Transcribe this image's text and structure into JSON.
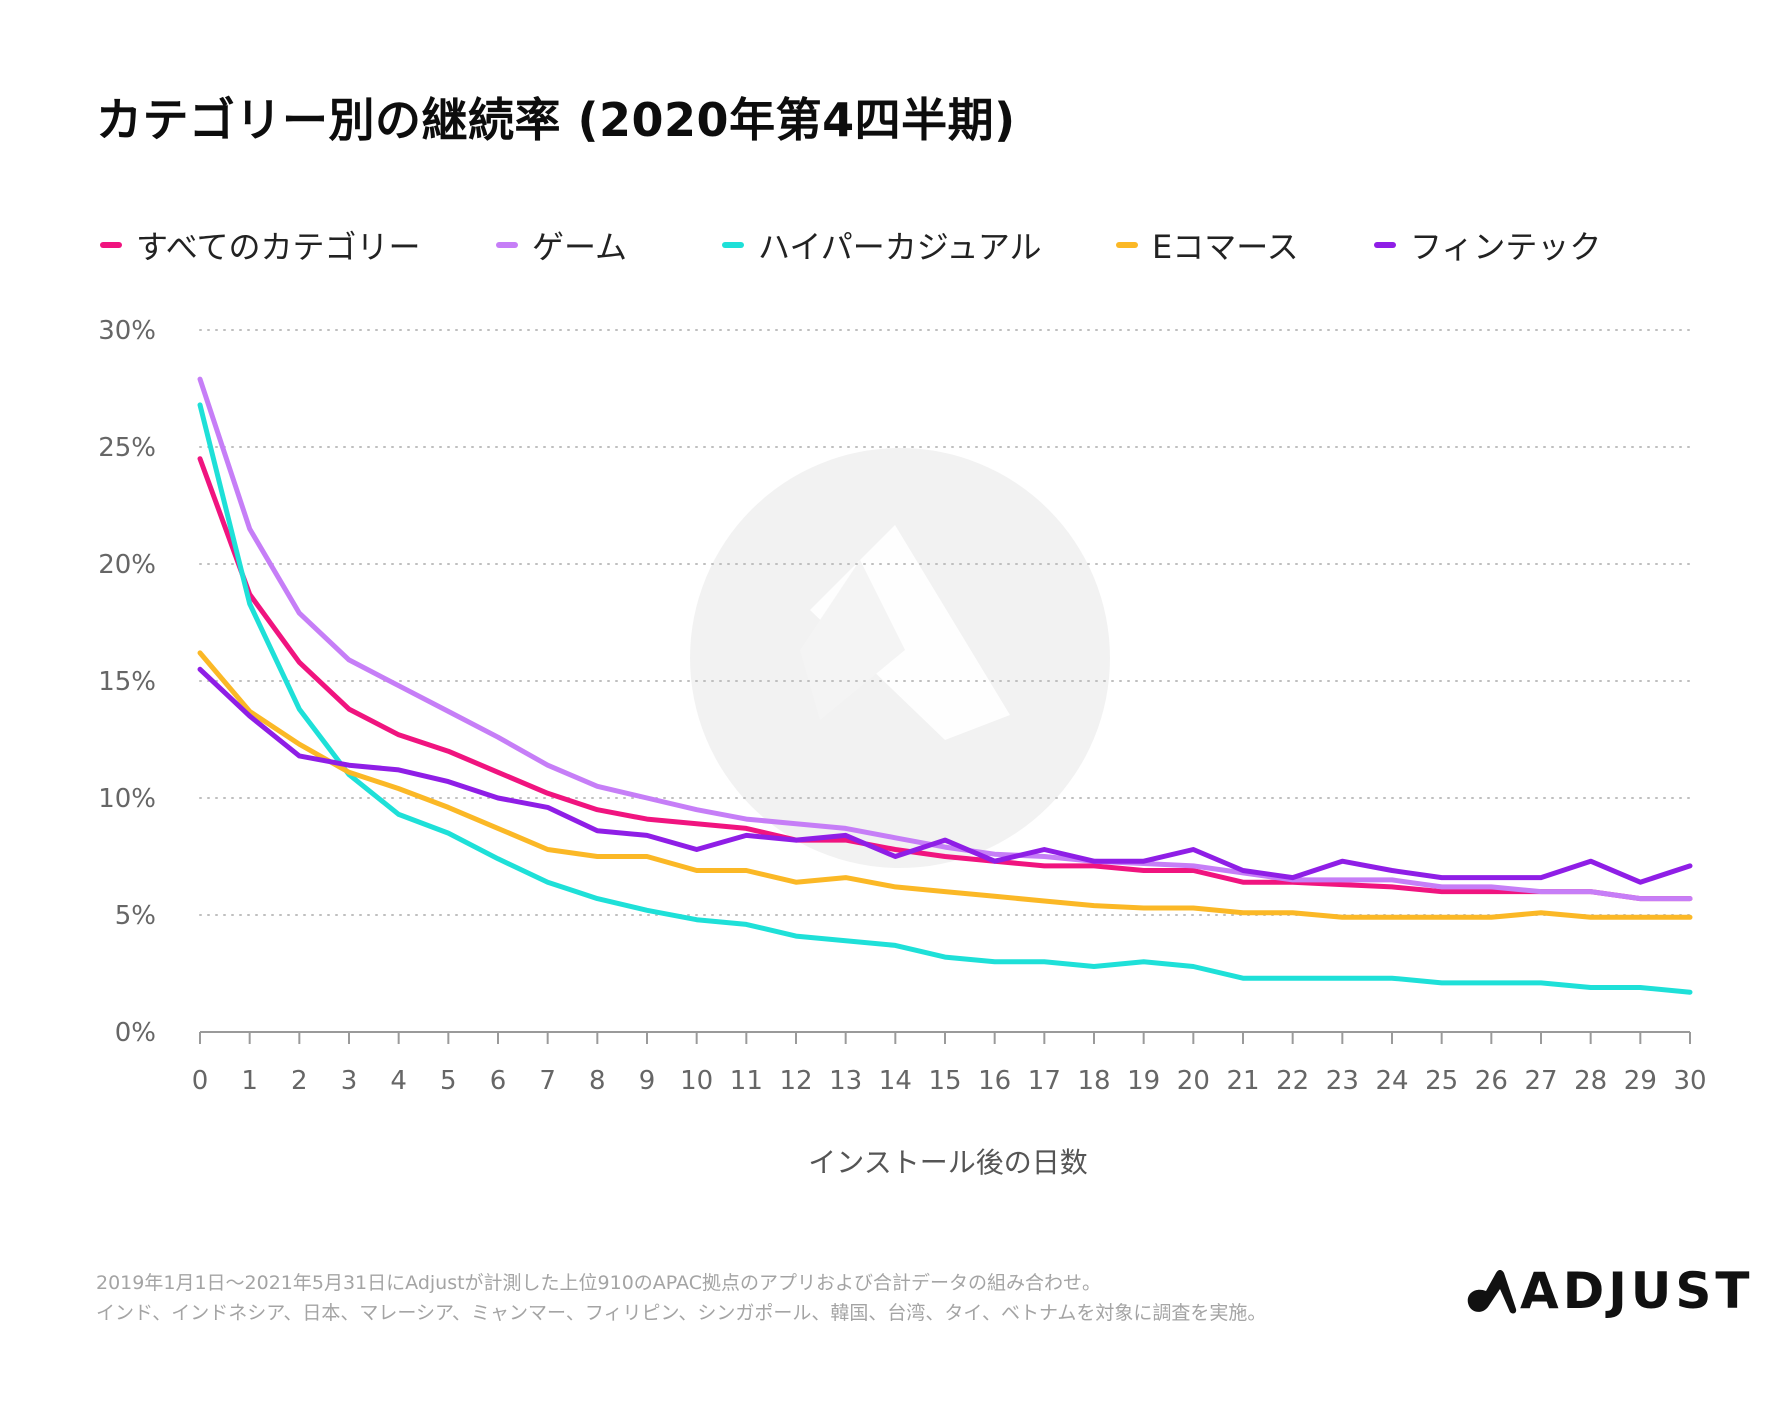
{
  "title": "カテゴリー別の継続率 (2020年第4四半期)",
  "footnote": {
    "line1": "2019年1月1日〜2021年5月31日にAdjustが計測した上位910のAPAC拠点のアプリおよび合計データの組み合わせ。",
    "line2": "インド、インドネシア、日本、マレーシア、ミャンマー、フィリピン、シンガポール、韓国、台湾、タイ、ベトナムを対象に調査を実施。"
  },
  "brand": {
    "name": "ADJUST",
    "logo_icon": "adjust-logo-icon"
  },
  "chart_data": {
    "type": "line",
    "xlabel": "インストール後の日数",
    "ylabel": "",
    "x": [
      0,
      1,
      2,
      3,
      4,
      5,
      6,
      7,
      8,
      9,
      10,
      11,
      12,
      13,
      14,
      15,
      16,
      17,
      18,
      19,
      20,
      21,
      22,
      23,
      24,
      25,
      26,
      27,
      28,
      29,
      30
    ],
    "xlim": [
      0,
      30
    ],
    "ylim": [
      0,
      30
    ],
    "y_ticks": [
      0,
      5,
      10,
      15,
      20,
      25,
      30
    ],
    "y_tick_labels": [
      "0%",
      "5%",
      "10%",
      "15%",
      "20%",
      "25%",
      "30%"
    ],
    "grid": "horizontal-dotted",
    "legend_position": "top",
    "series": [
      {
        "name": "すべてのカテゴリー",
        "color": "#f0147f",
        "values": [
          24.5,
          18.7,
          15.8,
          13.8,
          12.7,
          12.0,
          11.1,
          10.2,
          9.5,
          9.1,
          8.9,
          8.7,
          8.2,
          8.2,
          7.8,
          7.5,
          7.3,
          7.1,
          7.1,
          6.9,
          6.9,
          6.4,
          6.4,
          6.3,
          6.2,
          6.0,
          6.0,
          6.0,
          6.0,
          5.7,
          5.7
        ]
      },
      {
        "name": "ゲーム",
        "color": "#c67ef7",
        "values": [
          27.9,
          21.5,
          17.9,
          15.9,
          14.8,
          13.7,
          12.6,
          11.4,
          10.5,
          10.0,
          9.5,
          9.1,
          8.9,
          8.7,
          8.3,
          7.9,
          7.6,
          7.5,
          7.3,
          7.2,
          7.1,
          6.8,
          6.5,
          6.5,
          6.5,
          6.2,
          6.2,
          6.0,
          6.0,
          5.7,
          5.7
        ]
      },
      {
        "name": "ハイパーカジュアル",
        "color": "#1ee0d8",
        "values": [
          26.8,
          18.3,
          13.8,
          11.0,
          9.3,
          8.5,
          7.4,
          6.4,
          5.7,
          5.2,
          4.8,
          4.6,
          4.1,
          3.9,
          3.7,
          3.2,
          3.0,
          3.0,
          2.8,
          3.0,
          2.8,
          2.3,
          2.3,
          2.3,
          2.3,
          2.1,
          2.1,
          2.1,
          1.9,
          1.9,
          1.7
        ]
      },
      {
        "name": "Eコマース",
        "color": "#fbb826",
        "values": [
          16.2,
          13.7,
          12.3,
          11.1,
          10.4,
          9.6,
          8.7,
          7.8,
          7.5,
          7.5,
          6.9,
          6.9,
          6.4,
          6.6,
          6.2,
          6.0,
          5.8,
          5.6,
          5.4,
          5.3,
          5.3,
          5.1,
          5.1,
          4.9,
          4.9,
          4.9,
          4.9,
          5.1,
          4.9,
          4.9,
          4.9
        ]
      },
      {
        "name": "フィンテック",
        "color": "#8f1ee6",
        "values": [
          15.5,
          13.5,
          11.8,
          11.4,
          11.2,
          10.7,
          10.0,
          9.6,
          8.6,
          8.4,
          7.8,
          8.4,
          8.2,
          8.4,
          7.5,
          8.2,
          7.3,
          7.8,
          7.3,
          7.3,
          7.8,
          6.9,
          6.6,
          7.3,
          6.9,
          6.6,
          6.6,
          6.6,
          7.3,
          6.4,
          7.1
        ]
      }
    ]
  }
}
